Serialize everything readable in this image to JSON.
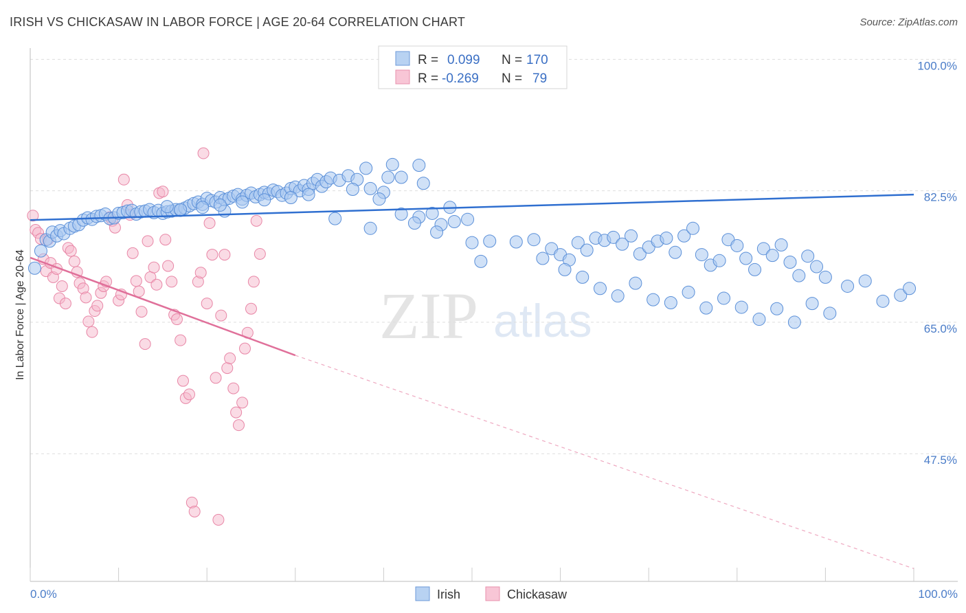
{
  "title": "IRISH VS CHICKASAW IN LABOR FORCE | AGE 20-64 CORRELATION CHART",
  "source": "Source: ZipAtlas.com",
  "watermark": {
    "zip": "ZIP",
    "atlas": "atlas"
  },
  "chart_data": {
    "type": "scatter",
    "title": "IRISH VS CHICKASAW IN LABOR FORCE | AGE 20-64 CORRELATION CHART",
    "xlabel": "",
    "ylabel": "In Labor Force | Age 20-64",
    "xlim": [
      0,
      100
    ],
    "ylim": [
      30.5,
      101.5
    ],
    "x_tick_labels": {
      "left": "0.0%",
      "right": "100.0%"
    },
    "y_ticks": [
      {
        "value": 100,
        "label": "100.0%"
      },
      {
        "value": 82.5,
        "label": "82.5%"
      },
      {
        "value": 65,
        "label": "65.0%"
      },
      {
        "value": 47.5,
        "label": "47.5%"
      }
    ],
    "legend": {
      "r_label": "R =",
      "n_label": "N =",
      "entries": [
        {
          "name": "Irish",
          "r": "0.099",
          "n": "170"
        },
        {
          "name": "Chickasaw",
          "r": "-0.269",
          "n": "79"
        }
      ]
    },
    "colors": {
      "irish_fill": "#a9c8f0",
      "irish_stroke": "#5a8fd8",
      "irish_line": "#2f6fd0",
      "chickasaw_fill": "#f6b8cc",
      "chickasaw_stroke": "#e886a6",
      "chickasaw_line": "#e0709a",
      "text_blue": "#3a6fc4",
      "grid": "#dddddd"
    },
    "series": [
      {
        "name": "Irish",
        "trend": {
          "x0": 0,
          "y0": 78.6,
          "x1": 100,
          "y1": 82.0
        },
        "points": [
          [
            0.5,
            72.2
          ],
          [
            1.2,
            74.5
          ],
          [
            1.8,
            76.0
          ],
          [
            2.2,
            75.8
          ],
          [
            2.5,
            77.0
          ],
          [
            3.0,
            76.5
          ],
          [
            3.4,
            77.2
          ],
          [
            3.8,
            76.8
          ],
          [
            4.5,
            77.5
          ],
          [
            5.0,
            77.8
          ],
          [
            5.5,
            78.0
          ],
          [
            6.0,
            78.6
          ],
          [
            6.5,
            78.9
          ],
          [
            7.0,
            78.7
          ],
          [
            7.5,
            79.1
          ],
          [
            8.0,
            79.2
          ],
          [
            8.5,
            79.4
          ],
          [
            9.0,
            78.8
          ],
          [
            9.5,
            78.9
          ],
          [
            10.0,
            79.5
          ],
          [
            10.5,
            79.6
          ],
          [
            11.0,
            79.8
          ],
          [
            11.5,
            79.9
          ],
          [
            12.0,
            79.4
          ],
          [
            12.5,
            79.7
          ],
          [
            13.0,
            79.8
          ],
          [
            13.5,
            80.0
          ],
          [
            14.0,
            79.6
          ],
          [
            14.5,
            79.9
          ],
          [
            15.0,
            79.5
          ],
          [
            15.5,
            79.7
          ],
          [
            16.0,
            79.8
          ],
          [
            16.5,
            80.0
          ],
          [
            17.0,
            79.9
          ],
          [
            17.5,
            80.2
          ],
          [
            18.0,
            80.5
          ],
          [
            18.5,
            80.8
          ],
          [
            19.0,
            81.0
          ],
          [
            19.5,
            80.7
          ],
          [
            20.0,
            81.5
          ],
          [
            20.5,
            81.2
          ],
          [
            21.0,
            81.0
          ],
          [
            21.5,
            81.6
          ],
          [
            22.0,
            81.3
          ],
          [
            22.5,
            81.5
          ],
          [
            23.0,
            81.8
          ],
          [
            23.5,
            82.0
          ],
          [
            24.0,
            81.4
          ],
          [
            24.5,
            81.9
          ],
          [
            25.0,
            82.2
          ],
          [
            25.5,
            81.7
          ],
          [
            26.0,
            82.0
          ],
          [
            26.5,
            82.3
          ],
          [
            27.0,
            82.1
          ],
          [
            27.5,
            82.6
          ],
          [
            28.0,
            82.4
          ],
          [
            28.5,
            81.9
          ],
          [
            29.0,
            82.2
          ],
          [
            29.5,
            82.8
          ],
          [
            30.0,
            83.0
          ],
          [
            30.5,
            82.5
          ],
          [
            31.0,
            83.2
          ],
          [
            31.5,
            82.7
          ],
          [
            32.0,
            83.5
          ],
          [
            32.5,
            84.0
          ],
          [
            33.0,
            83.1
          ],
          [
            33.5,
            83.7
          ],
          [
            34.0,
            84.2
          ],
          [
            35.0,
            83.9
          ],
          [
            36.0,
            84.5
          ],
          [
            37.0,
            84.0
          ],
          [
            38.0,
            85.5
          ],
          [
            22.0,
            79.8
          ],
          [
            38.5,
            77.5
          ],
          [
            15.5,
            80.4
          ],
          [
            17.0,
            80.0
          ],
          [
            19.5,
            80.3
          ],
          [
            21.5,
            80.6
          ],
          [
            24.0,
            81.0
          ],
          [
            26.5,
            81.3
          ],
          [
            29.5,
            81.6
          ],
          [
            31.5,
            82.0
          ],
          [
            34.5,
            78.8
          ],
          [
            36.5,
            82.7
          ],
          [
            38.5,
            82.8
          ],
          [
            40.0,
            82.3
          ],
          [
            39.5,
            81.4
          ],
          [
            40.5,
            84.3
          ],
          [
            41.0,
            86.0
          ],
          [
            42.0,
            84.3
          ],
          [
            44.0,
            85.9
          ],
          [
            44.5,
            83.5
          ],
          [
            42.0,
            79.4
          ],
          [
            44.0,
            79.0
          ],
          [
            43.5,
            78.2
          ],
          [
            46.5,
            78.0
          ],
          [
            47.5,
            80.3
          ],
          [
            45.5,
            79.5
          ],
          [
            46.0,
            77.0
          ],
          [
            48.0,
            78.4
          ],
          [
            49.5,
            78.7
          ],
          [
            50.0,
            75.6
          ],
          [
            52.0,
            75.8
          ],
          [
            55.0,
            75.7
          ],
          [
            57.0,
            76.0
          ],
          [
            51.0,
            73.1
          ],
          [
            59.0,
            74.8
          ],
          [
            60.0,
            74.0
          ],
          [
            61.0,
            73.3
          ],
          [
            62.0,
            75.6
          ],
          [
            63.0,
            74.6
          ],
          [
            64.0,
            76.2
          ],
          [
            65.0,
            75.9
          ],
          [
            66.0,
            76.3
          ],
          [
            67.0,
            75.4
          ],
          [
            68.0,
            76.5
          ],
          [
            69.0,
            74.1
          ],
          [
            70.0,
            75.0
          ],
          [
            71.0,
            75.8
          ],
          [
            72.0,
            76.2
          ],
          [
            73.0,
            74.3
          ],
          [
            74.0,
            76.5
          ],
          [
            75.0,
            77.5
          ],
          [
            76.0,
            74.0
          ],
          [
            77.0,
            72.6
          ],
          [
            78.0,
            73.2
          ],
          [
            79.0,
            76.0
          ],
          [
            80.0,
            75.2
          ],
          [
            81.0,
            73.5
          ],
          [
            82.0,
            72.0
          ],
          [
            83.0,
            74.8
          ],
          [
            84.0,
            73.9
          ],
          [
            85.0,
            75.3
          ],
          [
            86.0,
            73.0
          ],
          [
            87.0,
            71.2
          ],
          [
            88.0,
            73.8
          ],
          [
            89.0,
            72.4
          ],
          [
            90.0,
            71.0
          ],
          [
            58.0,
            73.5
          ],
          [
            60.5,
            72.0
          ],
          [
            62.5,
            71.0
          ],
          [
            64.5,
            69.5
          ],
          [
            66.5,
            68.5
          ],
          [
            68.5,
            70.2
          ],
          [
            70.5,
            68.0
          ],
          [
            72.5,
            67.6
          ],
          [
            74.5,
            69.0
          ],
          [
            76.5,
            66.9
          ],
          [
            78.5,
            68.2
          ],
          [
            80.5,
            67.0
          ],
          [
            82.5,
            65.4
          ],
          [
            84.5,
            66.8
          ],
          [
            86.5,
            65.0
          ],
          [
            88.5,
            67.5
          ],
          [
            90.5,
            66.2
          ],
          [
            92.5,
            69.8
          ],
          [
            94.5,
            70.5
          ],
          [
            96.5,
            67.8
          ],
          [
            98.5,
            68.6
          ],
          [
            99.5,
            69.5
          ]
        ]
      },
      {
        "name": "Chickasaw",
        "trend": {
          "x0": 0,
          "y0": 73.6,
          "x1": 30,
          "y1": 60.6,
          "dash_x1": 100,
          "dash_y1": 32.2
        },
        "points": [
          [
            0.3,
            79.2
          ],
          [
            0.6,
            77.3
          ],
          [
            0.9,
            76.9
          ],
          [
            1.2,
            76.1
          ],
          [
            1.5,
            73.4
          ],
          [
            1.8,
            71.8
          ],
          [
            2.0,
            76.0
          ],
          [
            2.3,
            72.9
          ],
          [
            2.6,
            71.0
          ],
          [
            3.0,
            72.1
          ],
          [
            3.3,
            68.2
          ],
          [
            3.6,
            69.8
          ],
          [
            4.0,
            67.5
          ],
          [
            4.3,
            74.9
          ],
          [
            4.6,
            74.5
          ],
          [
            5.0,
            73.1
          ],
          [
            5.3,
            71.7
          ],
          [
            5.6,
            70.2
          ],
          [
            6.0,
            69.5
          ],
          [
            6.3,
            68.3
          ],
          [
            6.6,
            65.1
          ],
          [
            7.0,
            63.7
          ],
          [
            7.3,
            66.5
          ],
          [
            7.6,
            67.2
          ],
          [
            8.0,
            68.9
          ],
          [
            8.3,
            69.8
          ],
          [
            8.6,
            70.4
          ],
          [
            9.0,
            79.0
          ],
          [
            9.3,
            78.5
          ],
          [
            9.6,
            77.6
          ],
          [
            10.0,
            67.9
          ],
          [
            10.3,
            68.7
          ],
          [
            10.6,
            84.0
          ],
          [
            11.0,
            80.6
          ],
          [
            11.3,
            79.3
          ],
          [
            11.6,
            74.2
          ],
          [
            12.0,
            70.5
          ],
          [
            12.3,
            69.1
          ],
          [
            12.6,
            66.4
          ],
          [
            13.0,
            62.1
          ],
          [
            13.3,
            75.8
          ],
          [
            13.6,
            71.0
          ],
          [
            14.0,
            72.3
          ],
          [
            14.3,
            70.0
          ],
          [
            14.6,
            82.2
          ],
          [
            15.0,
            82.4
          ],
          [
            15.3,
            76.0
          ],
          [
            15.6,
            72.5
          ],
          [
            16.0,
            70.4
          ],
          [
            16.3,
            66.0
          ],
          [
            16.6,
            65.4
          ],
          [
            17.0,
            62.6
          ],
          [
            17.3,
            57.2
          ],
          [
            17.6,
            54.9
          ],
          [
            18.0,
            55.4
          ],
          [
            18.3,
            41.0
          ],
          [
            18.6,
            39.8
          ],
          [
            19.0,
            70.4
          ],
          [
            19.3,
            71.6
          ],
          [
            19.6,
            87.5
          ],
          [
            20.0,
            67.5
          ],
          [
            20.3,
            78.2
          ],
          [
            20.6,
            74.0
          ],
          [
            21.0,
            57.6
          ],
          [
            21.3,
            38.7
          ],
          [
            21.6,
            65.9
          ],
          [
            22.0,
            74.0
          ],
          [
            22.3,
            58.9
          ],
          [
            22.6,
            60.2
          ],
          [
            23.0,
            56.2
          ],
          [
            23.3,
            53.0
          ],
          [
            23.6,
            51.3
          ],
          [
            24.0,
            54.3
          ],
          [
            24.3,
            61.5
          ],
          [
            24.6,
            63.6
          ],
          [
            25.0,
            66.8
          ],
          [
            25.3,
            70.4
          ],
          [
            25.6,
            78.5
          ],
          [
            26.0,
            74.1
          ]
        ]
      }
    ]
  }
}
